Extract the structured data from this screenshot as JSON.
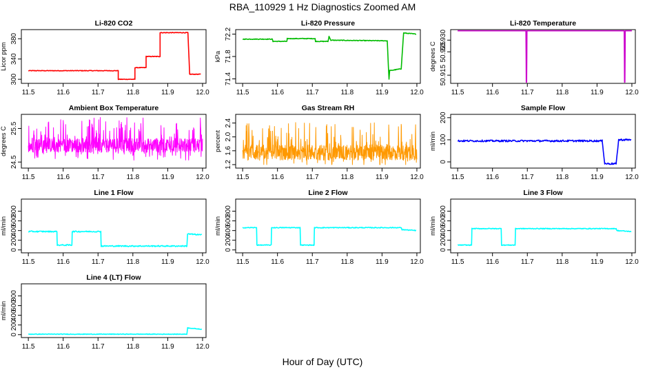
{
  "figure": {
    "title": "RBA_110929  1 Hz Diagnostics Zoomed AM",
    "xlabel": "Hour of Day (UTC)"
  },
  "chart_data": [
    {
      "type": "line",
      "title": "Li-820 CO2",
      "ylabel": "Licor ppm",
      "color": "#ff0000",
      "xlim": [
        11.48,
        12.01
      ],
      "ylim": [
        292,
        398
      ],
      "xticks": [
        11.5,
        11.6,
        11.7,
        11.8,
        11.9,
        12.0
      ],
      "xtick_labels": [
        "11.5",
        "11.6",
        "11.7",
        "11.8",
        "11.9",
        "12.0"
      ],
      "yticks": [
        300,
        340,
        380
      ],
      "ytick_labels": [
        "300",
        "340",
        "380"
      ],
      "pattern": "step",
      "noise": 0.6,
      "x": [
        11.5,
        11.758,
        11.758,
        11.806,
        11.806,
        11.838,
        11.838,
        11.878,
        11.878,
        11.958,
        11.963,
        11.995
      ],
      "y": [
        317,
        317,
        300,
        300,
        323,
        323,
        345,
        345,
        392,
        392,
        310,
        310
      ]
    },
    {
      "type": "line",
      "title": "Li-820 Pressure",
      "ylabel": "kPa",
      "color": "#00bb00",
      "xlim": [
        11.48,
        12.01
      ],
      "ylim": [
        71.32,
        72.28
      ],
      "xticks": [
        11.5,
        11.6,
        11.7,
        11.8,
        11.9,
        12.0
      ],
      "xtick_labels": [
        "11.5",
        "11.6",
        "11.7",
        "11.8",
        "11.9",
        "12.0"
      ],
      "yticks": [
        71.4,
        71.8,
        72.2
      ],
      "ytick_labels": [
        "71.4",
        "71.8",
        "72.2"
      ],
      "pattern": "step",
      "noise": 0.006,
      "x": [
        11.5,
        11.585,
        11.587,
        11.627,
        11.628,
        11.708,
        11.709,
        11.745,
        11.748,
        11.753,
        11.76,
        11.915,
        11.92,
        11.922,
        11.925,
        11.955,
        11.962,
        11.998
      ],
      "y": [
        72.11,
        72.11,
        72.07,
        72.07,
        72.12,
        72.12,
        72.07,
        72.07,
        72.16,
        72.09,
        72.09,
        72.08,
        71.4,
        71.55,
        71.55,
        71.58,
        72.22,
        72.2
      ]
    },
    {
      "type": "line",
      "title": "Li-820 Temperature",
      "ylabel": "degrees C",
      "color": "#cc00cc",
      "xlim": [
        11.48,
        12.01
      ],
      "ylim": [
        50.9115,
        50.9345
      ],
      "xticks": [
        11.5,
        11.6,
        11.7,
        11.8,
        11.9,
        12.0
      ],
      "xtick_labels": [
        "11.5",
        "11.6",
        "11.7",
        "11.8",
        "11.9",
        "12.0"
      ],
      "yticks": [
        50.915,
        50.925,
        50.93
      ],
      "ytick_labels": [
        "50.915",
        "50.925",
        "50.930"
      ],
      "pattern": "step",
      "noise": 0,
      "x": [
        11.5,
        11.696,
        11.697,
        11.698,
        11.699,
        11.978,
        11.979,
        11.98,
        11.981,
        12.0
      ],
      "y": [
        50.934,
        50.934,
        50.912,
        50.912,
        50.934,
        50.934,
        50.912,
        50.912,
        50.934,
        50.934
      ]
    },
    {
      "type": "line",
      "title": "Ambient Box Temperature",
      "ylabel": "degrees C",
      "color": "#ff00ff",
      "xlim": [
        11.48,
        12.01
      ],
      "ylim": [
        24.32,
        25.92
      ],
      "xticks": [
        11.5,
        11.6,
        11.7,
        11.8,
        11.9,
        12.0
      ],
      "xtick_labels": [
        "11.5",
        "11.6",
        "11.7",
        "11.8",
        "11.9",
        "12.0"
      ],
      "yticks": [
        24.5,
        25.5
      ],
      "ytick_labels": [
        "24.5",
        "25.5"
      ],
      "pattern": "noise",
      "base": 25.0,
      "amp": 0.85,
      "floor": 24.55,
      "ceil": 25.85,
      "x": [
        11.5,
        12.0
      ],
      "y": [
        25.0,
        25.0
      ]
    },
    {
      "type": "line",
      "title": "Gas Stream RH",
      "ylabel": "percent",
      "color": "#ff9900",
      "xlim": [
        11.48,
        12.01
      ],
      "ylim": [
        1.1,
        2.65
      ],
      "xticks": [
        11.5,
        11.6,
        11.7,
        11.8,
        11.9,
        12.0
      ],
      "xtick_labels": [
        "11.5",
        "11.6",
        "11.7",
        "11.8",
        "11.9",
        "12.0"
      ],
      "yticks": [
        1.2,
        1.6,
        2.0,
        2.4
      ],
      "ytick_labels": [
        "1.2",
        "1.6",
        "2.0",
        "2.4"
      ],
      "pattern": "noise",
      "base": 1.55,
      "amp": 0.9,
      "floor": 1.2,
      "ceil": 2.55,
      "x": [
        11.5,
        12.0
      ],
      "y": [
        1.55,
        1.55
      ]
    },
    {
      "type": "line",
      "title": "Sample Flow",
      "ylabel": "ml/min",
      "color": "#0000ff",
      "xlim": [
        11.48,
        12.01
      ],
      "ylim": [
        -28,
        215
      ],
      "xticks": [
        11.5,
        11.6,
        11.7,
        11.8,
        11.9,
        12.0
      ],
      "xtick_labels": [
        "11.5",
        "11.6",
        "11.7",
        "11.8",
        "11.9",
        "12.0"
      ],
      "yticks": [
        0,
        100,
        200
      ],
      "ytick_labels": [
        "0",
        "100",
        "200"
      ],
      "pattern": "step",
      "noise": 4,
      "x": [
        11.5,
        11.915,
        11.922,
        11.955,
        11.962,
        11.998
      ],
      "y": [
        95,
        95,
        -8,
        -8,
        100,
        100
      ]
    },
    {
      "type": "line",
      "title": "Line 1 Flow",
      "ylabel": "ml/min",
      "color": "#00ffff",
      "xlim": [
        11.48,
        12.01
      ],
      "ylim": [
        -60,
        1050
      ],
      "xticks": [
        11.5,
        11.6,
        11.7,
        11.8,
        11.9,
        12.0
      ],
      "xtick_labels": [
        "11.5",
        "11.6",
        "11.7",
        "11.8",
        "11.9",
        "12.0"
      ],
      "yticks": [
        0,
        200,
        400,
        600,
        800
      ],
      "ytick_labels": [
        "0",
        "200",
        "400",
        "600",
        "800"
      ],
      "pattern": "step",
      "noise": 12,
      "x": [
        11.5,
        11.582,
        11.583,
        11.625,
        11.626,
        11.708,
        11.709,
        11.955,
        11.957,
        11.998
      ],
      "y": [
        380,
        380,
        100,
        100,
        380,
        380,
        80,
        80,
        330,
        310
      ]
    },
    {
      "type": "line",
      "title": "Line 2 Flow",
      "ylabel": "ml/min",
      "color": "#00ffff",
      "xlim": [
        11.48,
        12.01
      ],
      "ylim": [
        -60,
        1050
      ],
      "xticks": [
        11.5,
        11.6,
        11.7,
        11.8,
        11.9,
        12.0
      ],
      "xtick_labels": [
        "11.5",
        "11.6",
        "11.7",
        "11.8",
        "11.9",
        "12.0"
      ],
      "yticks": [
        0,
        200,
        400,
        600,
        800
      ],
      "ytick_labels": [
        "0",
        "200",
        "400",
        "600",
        "800"
      ],
      "pattern": "step",
      "noise": 8,
      "x": [
        11.5,
        11.54,
        11.541,
        11.582,
        11.583,
        11.665,
        11.666,
        11.705,
        11.706,
        11.955,
        11.957,
        11.998
      ],
      "y": [
        460,
        460,
        100,
        100,
        460,
        460,
        100,
        100,
        460,
        460,
        420,
        400
      ]
    },
    {
      "type": "line",
      "title": "Line 3 Flow",
      "ylabel": "ml/min",
      "color": "#00ffff",
      "xlim": [
        11.48,
        12.01
      ],
      "ylim": [
        -60,
        1050
      ],
      "xticks": [
        11.5,
        11.6,
        11.7,
        11.8,
        11.9,
        12.0
      ],
      "xtick_labels": [
        "11.5",
        "11.6",
        "11.7",
        "11.8",
        "11.9",
        "12.0"
      ],
      "yticks": [
        0,
        200,
        400,
        600,
        800
      ],
      "ytick_labels": [
        "0",
        "200",
        "400",
        "600",
        "800"
      ],
      "pattern": "step",
      "noise": 8,
      "x": [
        11.5,
        11.54,
        11.541,
        11.625,
        11.626,
        11.665,
        11.666,
        11.955,
        11.957,
        11.998
      ],
      "y": [
        100,
        100,
        440,
        440,
        100,
        100,
        440,
        440,
        400,
        380
      ]
    },
    {
      "type": "line",
      "title": "Line 4 (LT) Flow",
      "ylabel": "ml/min",
      "color": "#00ffff",
      "xlim": [
        11.48,
        12.01
      ],
      "ylim": [
        -60,
        1050
      ],
      "xticks": [
        11.5,
        11.6,
        11.7,
        11.8,
        11.9,
        12.0
      ],
      "xtick_labels": [
        "11.5",
        "11.6",
        "11.7",
        "11.8",
        "11.9",
        "12.0"
      ],
      "yticks": [
        0,
        200,
        400,
        600,
        800
      ],
      "ytick_labels": [
        "0",
        "200",
        "400",
        "600",
        "800"
      ],
      "pattern": "step",
      "noise": 6,
      "x": [
        11.5,
        11.955,
        11.957,
        11.998
      ],
      "y": [
        10,
        10,
        140,
        110
      ]
    }
  ]
}
